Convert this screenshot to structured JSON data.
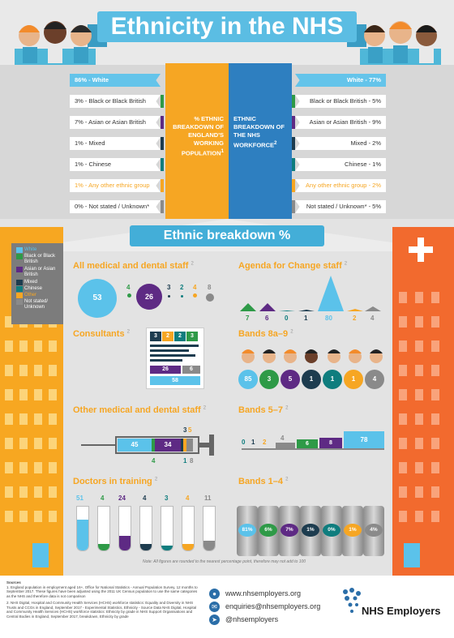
{
  "header": {
    "title": "Ethnicity in the NHS"
  },
  "compare": {
    "left_heading": "% ETHNIC BREAKDOWN OF ENGLAND'S WORKING POPULATION",
    "left_sup": "1",
    "right_heading": "ETHNIC BREAKDOWN OF THE NHS WORKFORCE",
    "right_sup": "2",
    "left_rows": [
      "86% - White",
      "3% - Black or Black British",
      "7% - Asian or Asian British",
      "1% - Mixed",
      "1% - Chinese",
      "1% - Any other ethnic group",
      "0% - Not stated / Unknown*"
    ],
    "right_rows": [
      "White - 77%",
      "Black or Black British - 5%",
      "Asian or Asian British - 9%",
      "Mixed - 2%",
      "Chinese - 1%",
      "Any other ethnic group - 2%",
      "Not stated / Unknown* - 5%"
    ]
  },
  "breakdown": {
    "title": "Ethnic breakdown %"
  },
  "legend": [
    "White",
    "Black or Black British",
    "Asian or Asian British",
    "Mixed",
    "Chinese",
    "Other",
    "Not stated/ Unknown"
  ],
  "colors": {
    "white": "#5bc2ea",
    "black": "#2e9a47",
    "asian": "#5e2a84",
    "mixed": "#1d3c4f",
    "chinese": "#0f7d7e",
    "other": "#f6a623",
    "unknown": "#8a8a8a"
  },
  "sections": {
    "all_medical": {
      "title": "All medical and dental staff",
      "sup": "2",
      "values": [
        "53",
        "4",
        "26",
        "3",
        "2",
        "4",
        "8"
      ]
    },
    "agenda": {
      "title": "Agenda for Change staff",
      "sup": "2",
      "values": [
        "7",
        "6",
        "0",
        "1",
        "80",
        "2",
        "4"
      ]
    },
    "consultants": {
      "title": "Consultants",
      "sup": "2",
      "values": [
        "3",
        "2",
        "2",
        "3",
        "26",
        "6",
        "58"
      ]
    },
    "bands_8a9": {
      "title": "Bands 8a–9",
      "sup": "2",
      "values": [
        "85",
        "3",
        "5",
        "1",
        "1",
        "1",
        "4"
      ]
    },
    "other_medical": {
      "title": "Other medical and dental staff",
      "sup": "2",
      "values": [
        "45",
        "34",
        "3",
        "5",
        "4",
        "1",
        "8"
      ]
    },
    "bands_57": {
      "title": "Bands 5–7",
      "sup": "2",
      "values": [
        "0",
        "1",
        "2",
        "4",
        "6",
        "8",
        "78"
      ]
    },
    "doctors_training": {
      "title": "Doctors in training",
      "sup": "2",
      "values": [
        "51",
        "4",
        "24",
        "4",
        "3",
        "4",
        "11"
      ]
    },
    "bands_14": {
      "title": "Bands 1–4",
      "sup": "2",
      "values": [
        "81%",
        "6%",
        "7%",
        "1%",
        "0%",
        "1%",
        "4%"
      ]
    }
  },
  "note": "Note: All figures are rounded to the nearest percentage point, therefore may not add to 100",
  "footer": {
    "sources_title": "Sources",
    "source1": "1. England population in employment aged 16+, Office for National Statistics - Annual Population Survey, 12 months to September 2017. These figures have been adjusted using the 2011 UK Census population to use the same categories as the NHS and therefore data is not comparison",
    "source2": "2. NHS Digital, Hospital and Community Health Services (HCHS) workforce statistics: Equality and Diversity in NHS Trusts and CCGs in England, September 2017 - Experimental Statistics, Ethnicity - Source Data NHS Digital, Hospital and Community Health Services (HCHS) workforce statistics: Ethnicity by grade in NHS Support Organisations and Central Bodies in England, September 2017, breakdown, Ethnicity by grade",
    "website": "www.nhsemployers.org",
    "email": "enquiries@nhsemployers.org",
    "twitter": "@nhsemployers",
    "logo": "NHS Employers"
  }
}
